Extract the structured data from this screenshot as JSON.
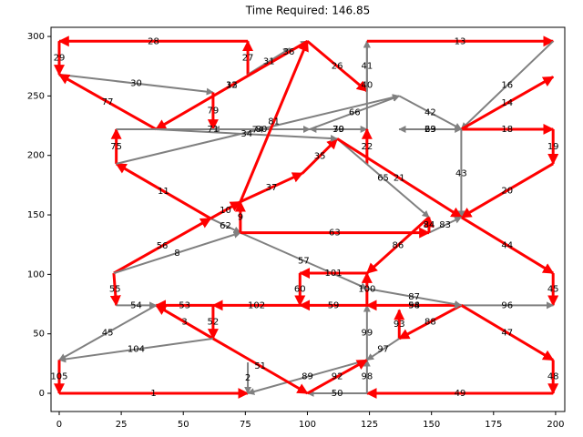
{
  "chart_data": {
    "type": "arrows",
    "title": "Time Required: 146.85",
    "xlim": [
      -3.3,
      203.7
    ],
    "ylim": [
      -15.3,
      307.7
    ],
    "xticks": [
      0,
      25,
      50,
      75,
      100,
      125,
      150,
      175,
      200
    ],
    "yticks": [
      0,
      50,
      100,
      150,
      200,
      250,
      300
    ],
    "edges": [
      {
        "label": 1,
        "x": [
          0,
          76
        ],
        "y": [
          0,
          0
        ],
        "color": "red"
      },
      {
        "label": 28,
        "x": [
          76,
          0
        ],
        "y": [
          296,
          296
        ],
        "color": "red"
      },
      {
        "label": 29,
        "x": [
          0,
          0
        ],
        "y": [
          296,
          268
        ],
        "color": "red"
      },
      {
        "label": 27,
        "x": [
          76,
          76
        ],
        "y": [
          268,
          296
        ],
        "color": "red"
      },
      {
        "label": 31,
        "x": [
          76,
          93
        ],
        "y": [
          268,
          290
        ],
        "color": "gray"
      },
      {
        "label": 36,
        "x": [
          85,
          100
        ],
        "y": [
          278,
          296
        ],
        "color": "gray"
      },
      {
        "label": 12,
        "x": [
          39,
          100
        ],
        "y": [
          222,
          296
        ],
        "color": "gray"
      },
      {
        "label": 30,
        "x": [
          0,
          62
        ],
        "y": [
          268,
          253
        ],
        "color": "gray"
      },
      {
        "label": 79,
        "x": [
          62,
          62
        ],
        "y": [
          253,
          222
        ],
        "color": "red"
      },
      {
        "label": 77,
        "x": [
          39,
          0
        ],
        "y": [
          222,
          268
        ],
        "color": "red"
      },
      {
        "label": 33,
        "x": [
          100,
          39
        ],
        "y": [
          296,
          222
        ],
        "color": "red"
      },
      {
        "label": 26,
        "x": [
          100,
          124
        ],
        "y": [
          296,
          254
        ],
        "color": "red"
      },
      {
        "label": 40,
        "x": [
          124,
          124
        ],
        "y": [
          222,
          296
        ],
        "color": "gray"
      },
      {
        "label": 41,
        "x": [
          124,
          124
        ],
        "y": [
          254,
          296
        ],
        "color": "gray"
      },
      {
        "label": 13,
        "x": [
          124,
          199
        ],
        "y": [
          296,
          296
        ],
        "color": "red"
      },
      {
        "label": 16,
        "x": [
          199,
          162
        ],
        "y": [
          296,
          222
        ],
        "color": "gray"
      },
      {
        "label": 14,
        "x": [
          162,
          199
        ],
        "y": [
          222,
          266
        ],
        "color": "red"
      },
      {
        "label": 18,
        "x": [
          162,
          199
        ],
        "y": [
          222,
          222
        ],
        "color": "red"
      },
      {
        "label": 19,
        "x": [
          199,
          199
        ],
        "y": [
          222,
          193
        ],
        "color": "red"
      },
      {
        "label": 20,
        "x": [
          199,
          162
        ],
        "y": [
          193,
          148
        ],
        "color": "red"
      },
      {
        "label": 43,
        "x": [
          162,
          162
        ],
        "y": [
          222,
          148
        ],
        "color": "gray"
      },
      {
        "label": 44,
        "x": [
          162,
          199
        ],
        "y": [
          148,
          101
        ],
        "color": "red"
      },
      {
        "label": 45,
        "x": [
          199,
          199
        ],
        "y": [
          101,
          74
        ],
        "color": "red"
      },
      {
        "label": 96,
        "x": [
          162,
          199
        ],
        "y": [
          74,
          74
        ],
        "color": "gray"
      },
      {
        "label": 47,
        "x": [
          162,
          199
        ],
        "y": [
          74,
          28
        ],
        "color": "red"
      },
      {
        "label": 48,
        "x": [
          199,
          199
        ],
        "y": [
          28,
          0
        ],
        "color": "red"
      },
      {
        "label": 49,
        "x": [
          199,
          124
        ],
        "y": [
          0,
          0
        ],
        "color": "red"
      },
      {
        "label": 50,
        "x": [
          124,
          100
        ],
        "y": [
          0,
          0
        ],
        "color": "gray"
      },
      {
        "label": 98,
        "x": [
          124,
          124
        ],
        "y": [
          0,
          28
        ],
        "color": "gray"
      },
      {
        "label": 99,
        "x": [
          124,
          124
        ],
        "y": [
          28,
          74
        ],
        "color": "gray"
      },
      {
        "label": 89,
        "x": [
          124,
          76
        ],
        "y": [
          28,
          0
        ],
        "color": "gray"
      },
      {
        "label": 92,
        "x": [
          100,
          124
        ],
        "y": [
          0,
          28
        ],
        "color": "red"
      },
      {
        "label": 93,
        "x": [
          137,
          137
        ],
        "y": [
          46,
          70
        ],
        "color": "red"
      },
      {
        "label": 88,
        "x": [
          162,
          137
        ],
        "y": [
          74,
          46
        ],
        "color": "red"
      },
      {
        "label": 94,
        "x": [
          124,
          162
        ],
        "y": [
          74,
          74
        ],
        "color": "gray"
      },
      {
        "label": 58,
        "x": [
          162,
          124
        ],
        "y": [
          74,
          74
        ],
        "color": "red"
      },
      {
        "label": 59,
        "x": [
          124,
          97
        ],
        "y": [
          74,
          74
        ],
        "color": "red"
      },
      {
        "label": 100,
        "x": [
          124,
          124
        ],
        "y": [
          74,
          101
        ],
        "color": "red"
      },
      {
        "label": 86,
        "x": [
          149,
          124
        ],
        "y": [
          148,
          101
        ],
        "color": "red"
      },
      {
        "label": 57,
        "x": [
          73,
          124
        ],
        "y": [
          135,
          88
        ],
        "color": "gray"
      },
      {
        "label": 87,
        "x": [
          124,
          162
        ],
        "y": [
          88,
          74
        ],
        "color": "gray"
      },
      {
        "label": 63,
        "x": [
          73,
          149
        ],
        "y": [
          135,
          135
        ],
        "color": "red"
      },
      {
        "label": 101,
        "x": [
          124,
          97
        ],
        "y": [
          101,
          101
        ],
        "color": "red"
      },
      {
        "label": 60,
        "x": [
          97,
          97
        ],
        "y": [
          101,
          74
        ],
        "color": "red"
      },
      {
        "label": 102,
        "x": [
          97,
          62
        ],
        "y": [
          74,
          74
        ],
        "color": "red"
      },
      {
        "label": 53,
        "x": [
          62,
          39
        ],
        "y": [
          74,
          74
        ],
        "color": "red"
      },
      {
        "label": 52,
        "x": [
          62,
          62
        ],
        "y": [
          74,
          46
        ],
        "color": "red"
      },
      {
        "label": 3,
        "x": [
          62,
          39
        ],
        "y": [
          46,
          74
        ],
        "color": "red"
      },
      {
        "label": 104,
        "x": [
          62,
          0
        ],
        "y": [
          46,
          28
        ],
        "color": "gray"
      },
      {
        "label": 45,
        "x": [
          39,
          0
        ],
        "y": [
          74,
          28
        ],
        "color": "gray"
      },
      {
        "label": 105,
        "x": [
          0,
          0
        ],
        "y": [
          28,
          0
        ],
        "color": "red"
      },
      {
        "label": 55,
        "x": [
          22,
          23
        ],
        "y": [
          101,
          74
        ],
        "color": "red"
      },
      {
        "label": 54,
        "x": [
          23,
          39
        ],
        "y": [
          74,
          74
        ],
        "color": "gray"
      },
      {
        "label": 56,
        "x": [
          22,
          61
        ],
        "y": [
          101,
          147
        ],
        "color": "red"
      },
      {
        "label": 8,
        "x": [
          22,
          73
        ],
        "y": [
          101,
          135
        ],
        "color": "gray"
      },
      {
        "label": 62,
        "x": [
          61,
          73
        ],
        "y": [
          147,
          135
        ],
        "color": "gray"
      },
      {
        "label": 9,
        "x": [
          73,
          73
        ],
        "y": [
          135,
          161
        ],
        "color": "red"
      },
      {
        "label": 10,
        "x": [
          61,
          73
        ],
        "y": [
          147,
          161
        ],
        "color": "red"
      },
      {
        "label": 37,
        "x": [
          73,
          98
        ],
        "y": [
          161,
          185
        ],
        "color": "red"
      },
      {
        "label": 35,
        "x": [
          98,
          112
        ],
        "y": [
          185,
          214
        ],
        "color": "red"
      },
      {
        "label": 11,
        "x": [
          61,
          23
        ],
        "y": [
          147,
          193
        ],
        "color": "red"
      },
      {
        "label": 75,
        "x": [
          23,
          23
        ],
        "y": [
          193,
          222
        ],
        "color": "red"
      },
      {
        "label": 74,
        "x": [
          23,
          137
        ],
        "y": [
          193,
          250
        ],
        "color": "gray"
      },
      {
        "label": 71,
        "x": [
          23,
          101
        ],
        "y": [
          222,
          222
        ],
        "color": "gray"
      },
      {
        "label": 80,
        "x": [
          101,
          62
        ],
        "y": [
          222,
          222
        ],
        "color": "gray"
      },
      {
        "label": 34,
        "x": [
          39,
          112
        ],
        "y": [
          222,
          214
        ],
        "color": "gray"
      },
      {
        "label": 70,
        "x": [
          101,
          124
        ],
        "y": [
          222,
          222
        ],
        "color": "gray"
      },
      {
        "label": 39,
        "x": [
          124,
          101
        ],
        "y": [
          222,
          222
        ],
        "color": "gray"
      },
      {
        "label": 66,
        "x": [
          101,
          137
        ],
        "y": [
          222,
          250
        ],
        "color": "gray"
      },
      {
        "label": 42,
        "x": [
          137,
          162
        ],
        "y": [
          250,
          222
        ],
        "color": "gray"
      },
      {
        "label": 23,
        "x": [
          162,
          137
        ],
        "y": [
          222,
          222
        ],
        "color": "gray"
      },
      {
        "label": 69,
        "x": [
          137,
          162
        ],
        "y": [
          222,
          222
        ],
        "color": "gray"
      },
      {
        "label": 22,
        "x": [
          124,
          124
        ],
        "y": [
          193,
          222
        ],
        "color": "red"
      },
      {
        "label": 65,
        "x": [
          112,
          149
        ],
        "y": [
          214,
          148
        ],
        "color": "gray"
      },
      {
        "label": 21,
        "x": [
          112,
          162
        ],
        "y": [
          214,
          148
        ],
        "color": "red"
      },
      {
        "label": 83,
        "x": [
          149,
          162
        ],
        "y": [
          135,
          148
        ],
        "color": "gray"
      },
      {
        "label": 84,
        "x": [
          149,
          149
        ],
        "y": [
          135,
          148
        ],
        "color": "red"
      },
      {
        "label": 81,
        "x": [
          73,
          100
        ],
        "y": [
          161,
          296
        ],
        "color": "red"
      },
      {
        "label": 51,
        "x": [
          62,
          100
        ],
        "y": [
          46,
          0
        ],
        "color": "red"
      },
      {
        "label": 2,
        "x": [
          76,
          76
        ],
        "y": [
          26,
          0
        ],
        "color": "gray"
      },
      {
        "label": 97,
        "x": [
          137,
          124
        ],
        "y": [
          46,
          28
        ],
        "color": "gray"
      }
    ]
  }
}
